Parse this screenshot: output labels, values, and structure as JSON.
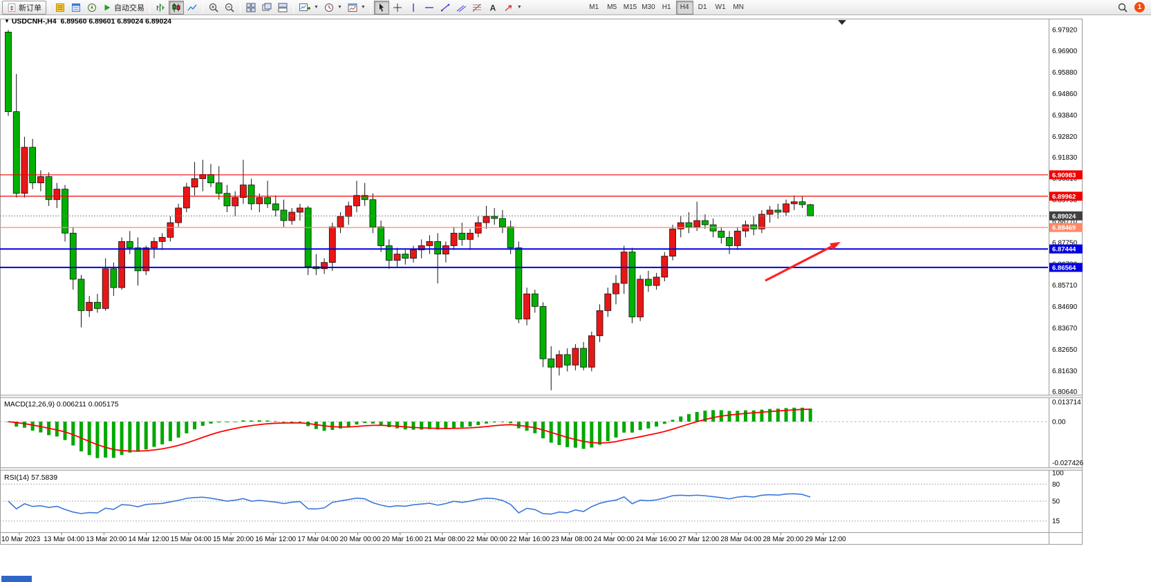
{
  "toolbar": {
    "new_order_label": "新订单",
    "autotrading_label": "自动交易",
    "timeframes": [
      "M1",
      "M5",
      "M15",
      "M30",
      "H1",
      "H4",
      "D1",
      "W1",
      "MN"
    ],
    "active_timeframe": "H4",
    "notification_count": "1"
  },
  "chart": {
    "title_symbol": "USDCNH-,H4",
    "title_ohlc": "6.89560 6.89601 6.89024 6.89024"
  },
  "panels": {
    "macd_title": "MACD(12,26,9) 0.006211 0.005175",
    "rsi_title": "RSI(14) 57.5839"
  },
  "colors": {
    "up": "#e81717",
    "down": "#00b100",
    "wick": "#111111",
    "hline_red": "#f00000",
    "hline_orange": "#ff8866",
    "hline_blue": "#0000e0",
    "current_price_box": "#404040",
    "macd_hist": "#00a800",
    "macd_signal": "#ff0000",
    "rsi_line": "#3c78d8",
    "arrow": "#ff1f1f"
  },
  "chart_data": [
    {
      "type": "candlestick",
      "title": "USDCNH-,H4",
      "ohlc_last": {
        "open": 6.8956,
        "high": 6.89601,
        "low": 6.89024,
        "close": 6.89024
      },
      "ylim": [
        6.8052,
        6.98407
      ],
      "y_ticks": [
        "6.97920",
        "6.96900",
        "6.95880",
        "6.94860",
        "6.93840",
        "6.92820",
        "6.91830",
        "6.90810",
        "6.89790",
        "6.88770",
        "6.87750",
        "6.86730",
        "6.85710",
        "6.84690",
        "6.83670",
        "6.82650",
        "6.81630",
        "6.80640"
      ],
      "x_labels": [
        "10 Mar 2023",
        "13 Mar 04:00",
        "13 Mar 20:00",
        "14 Mar 12:00",
        "15 Mar 04:00",
        "15 Mar 20:00",
        "16 Mar 12:00",
        "17 Mar 04:00",
        "20 Mar 00:00",
        "20 Mar 16:00",
        "21 Mar 08:00",
        "22 Mar 00:00",
        "22 Mar 16:00",
        "23 Mar 08:00",
        "24 Mar 00:00",
        "24 Mar 16:00",
        "27 Mar 12:00",
        "28 Mar 04:00",
        "28 Mar 20:00",
        "29 Mar 12:00"
      ],
      "candles": [
        [
          6.978,
          6.979,
          6.938,
          6.94
        ],
        [
          6.94,
          6.958,
          6.899,
          6.901
        ],
        [
          6.901,
          6.928,
          6.899,
          6.923
        ],
        [
          6.923,
          6.927,
          6.903,
          6.906
        ],
        [
          6.906,
          6.912,
          6.902,
          6.909
        ],
        [
          6.909,
          6.911,
          6.895,
          6.898
        ],
        [
          6.898,
          6.906,
          6.894,
          6.903
        ],
        [
          6.903,
          6.905,
          6.878,
          6.882
        ],
        [
          6.882,
          6.885,
          6.855,
          6.86
        ],
        [
          6.86,
          6.862,
          6.837,
          6.845
        ],
        [
          6.845,
          6.852,
          6.842,
          6.849
        ],
        [
          6.849,
          6.853,
          6.844,
          6.846
        ],
        [
          6.846,
          6.87,
          6.845,
          6.865
        ],
        [
          6.865,
          6.868,
          6.852,
          6.856
        ],
        [
          6.856,
          6.88,
          6.855,
          6.878
        ],
        [
          6.878,
          6.883,
          6.872,
          6.875
        ],
        [
          6.875,
          6.88,
          6.857,
          6.864
        ],
        [
          6.864,
          6.876,
          6.862,
          6.875
        ],
        [
          6.875,
          6.88,
          6.87,
          6.878
        ],
        [
          6.878,
          6.882,
          6.874,
          6.88
        ],
        [
          6.88,
          6.89,
          6.878,
          6.887
        ],
        [
          6.887,
          6.896,
          6.885,
          6.894
        ],
        [
          6.894,
          6.906,
          6.892,
          6.904
        ],
        [
          6.904,
          6.916,
          6.9,
          6.908
        ],
        [
          6.908,
          6.917,
          6.902,
          6.91
        ],
        [
          6.91,
          6.915,
          6.904,
          6.906
        ],
        [
          6.906,
          6.914,
          6.898,
          6.901
        ],
        [
          6.901,
          6.905,
          6.892,
          6.895
        ],
        [
          6.895,
          6.902,
          6.89,
          6.899
        ],
        [
          6.899,
          6.917,
          6.896,
          6.905
        ],
        [
          6.905,
          6.908,
          6.893,
          6.896
        ],
        [
          6.896,
          6.901,
          6.892,
          6.899
        ],
        [
          6.899,
          6.907,
          6.894,
          6.896
        ],
        [
          6.896,
          6.9,
          6.89,
          6.893
        ],
        [
          6.893,
          6.898,
          6.885,
          6.888
        ],
        [
          6.888,
          6.894,
          6.886,
          6.892
        ],
        [
          6.892,
          6.896,
          6.888,
          6.894
        ],
        [
          6.894,
          6.895,
          6.862,
          6.866
        ],
        [
          6.866,
          6.872,
          6.862,
          6.865
        ],
        [
          6.865,
          6.87,
          6.8625,
          6.868
        ],
        [
          6.868,
          6.887,
          6.864,
          6.885
        ],
        [
          6.885,
          6.892,
          6.882,
          6.89
        ],
        [
          6.89,
          6.897,
          6.886,
          6.895
        ],
        [
          6.895,
          6.907,
          6.892,
          6.9
        ],
        [
          6.9,
          6.906,
          6.895,
          6.898
        ],
        [
          6.898,
          6.901,
          6.882,
          6.885
        ],
        [
          6.885,
          6.888,
          6.873,
          6.876
        ],
        [
          6.876,
          6.879,
          6.865,
          6.869
        ],
        [
          6.869,
          6.875,
          6.866,
          6.872
        ],
        [
          6.872,
          6.874,
          6.867,
          6.87
        ],
        [
          6.87,
          6.876,
          6.868,
          6.874
        ],
        [
          6.874,
          6.879,
          6.87,
          6.876
        ],
        [
          6.876,
          6.881,
          6.872,
          6.878
        ],
        [
          6.878,
          6.882,
          6.858,
          6.872
        ],
        [
          6.872,
          6.878,
          6.868,
          6.876
        ],
        [
          6.876,
          6.885,
          6.874,
          6.882
        ],
        [
          6.882,
          6.887,
          6.876,
          6.879
        ],
        [
          6.879,
          6.884,
          6.874,
          6.882
        ],
        [
          6.882,
          6.89,
          6.88,
          6.887
        ],
        [
          6.887,
          6.895,
          6.884,
          6.89
        ],
        [
          6.89,
          6.894,
          6.886,
          6.889
        ],
        [
          6.889,
          6.893,
          6.882,
          6.885
        ],
        [
          6.885,
          6.888,
          6.872,
          6.875
        ],
        [
          6.875,
          6.878,
          6.839,
          6.841
        ],
        [
          6.841,
          6.856,
          6.838,
          6.853
        ],
        [
          6.853,
          6.855,
          6.844,
          6.847
        ],
        [
          6.847,
          6.849,
          6.818,
          6.822
        ],
        [
          6.822,
          6.828,
          6.807,
          6.818
        ],
        [
          6.818,
          6.826,
          6.814,
          6.824
        ],
        [
          6.824,
          6.827,
          6.816,
          6.819
        ],
        [
          6.819,
          6.829,
          6.8165,
          6.827
        ],
        [
          6.827,
          6.83,
          6.8165,
          6.818
        ],
        [
          6.818,
          6.835,
          6.816,
          6.833
        ],
        [
          6.833,
          6.848,
          6.83,
          6.845
        ],
        [
          6.845,
          6.856,
          6.842,
          6.853
        ],
        [
          6.853,
          6.862,
          6.848,
          6.858
        ],
        [
          6.858,
          6.876,
          6.853,
          6.873
        ],
        [
          6.873,
          6.875,
          6.839,
          6.842
        ],
        [
          6.842,
          6.862,
          6.84,
          6.86
        ],
        [
          6.86,
          6.864,
          6.854,
          6.857
        ],
        [
          6.857,
          6.863,
          6.855,
          6.861
        ],
        [
          6.861,
          6.873,
          6.859,
          6.871
        ],
        [
          6.871,
          6.886,
          6.869,
          6.884
        ],
        [
          6.884,
          6.89,
          6.88,
          6.887
        ],
        [
          6.887,
          6.892,
          6.882,
          6.885
        ],
        [
          6.885,
          6.897,
          6.883,
          6.888
        ],
        [
          6.888,
          6.891,
          6.884,
          6.886
        ],
        [
          6.886,
          6.889,
          6.88,
          6.883
        ],
        [
          6.883,
          6.885,
          6.877,
          6.88
        ],
        [
          6.88,
          6.883,
          6.872,
          6.876
        ],
        [
          6.876,
          6.885,
          6.874,
          6.883
        ],
        [
          6.883,
          6.888,
          6.88,
          6.886
        ],
        [
          6.886,
          6.89,
          6.881,
          6.884
        ],
        [
          6.884,
          6.893,
          6.882,
          6.891
        ],
        [
          6.891,
          6.895,
          6.887,
          6.893
        ],
        [
          6.893,
          6.896,
          6.889,
          6.892
        ],
        [
          6.892,
          6.898,
          6.89,
          6.896
        ],
        [
          6.896,
          6.9,
          6.893,
          6.897
        ],
        [
          6.897,
          6.8995,
          6.894,
          6.8956
        ],
        [
          6.8956,
          6.896,
          6.8902,
          6.8902
        ]
      ],
      "hlines": [
        {
          "price": 6.90983,
          "label": "6.90983",
          "color": "#f00000",
          "width": 1.2
        },
        {
          "price": 6.89962,
          "label": "6.89962",
          "color": "#f00000",
          "width": 1.2
        },
        {
          "price": 6.88469,
          "label": "6.88469",
          "color": "#ff8866",
          "width": 1.2
        },
        {
          "price": 6.87444,
          "label": "6.87444",
          "color": "#0000e0",
          "width": 2
        },
        {
          "price": 6.86564,
          "label": "6.86564",
          "color": "#0000e0",
          "width": 2
        }
      ],
      "current_price": {
        "price": 6.89024,
        "label": "6.89024"
      },
      "arrow_annotation": {
        "from": [
          1107,
          384
        ],
        "to": [
          1216,
          328
        ]
      }
    },
    {
      "type": "macd",
      "title": "MACD(12,26,9)",
      "macd_value": 0.006211,
      "signal_value": 0.005175,
      "params": [
        12,
        26,
        9
      ],
      "scale": {
        "max": 0.013714,
        "min": -0.027426,
        "max_label": "0.013714",
        "zero_label": "0.00",
        "min_label": "-0.027426"
      }
    },
    {
      "type": "rsi",
      "title": "RSI(14)",
      "value": 57.5839,
      "params": [
        14
      ],
      "levels": [
        {
          "v": 100,
          "label": "100"
        },
        {
          "v": 80,
          "label": "80"
        },
        {
          "v": 50,
          "label": "50"
        },
        {
          "v": 15,
          "label": "15"
        }
      ]
    }
  ]
}
